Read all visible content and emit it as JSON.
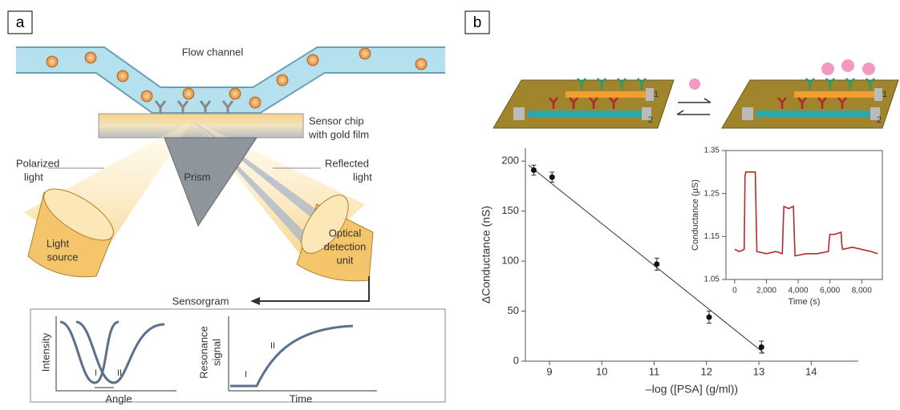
{
  "panel_a": {
    "label": "a",
    "flow_channel": "Flow channel",
    "sensor_chip": [
      "Sensor chip",
      "with gold film"
    ],
    "polarized_light": [
      "Polarized",
      "light"
    ],
    "reflected_light": [
      "Reflected",
      "light"
    ],
    "prism": "Prism",
    "light_source": [
      "Light",
      "source"
    ],
    "detection_unit": [
      "Optical",
      "detection",
      "unit"
    ],
    "sensorgram": "Sensorgram",
    "plot_1": {
      "y_label": "Intensity",
      "x_label": "Angle",
      "marks": [
        "I",
        "II"
      ]
    },
    "plot_2": {
      "y_label": [
        "Resonance",
        "signal"
      ],
      "x_label": "Time",
      "marks": [
        "I",
        "II"
      ]
    }
  },
  "panel_b": {
    "label": "b",
    "chip_labels": [
      [
        "1",
        "2"
      ],
      [
        "1",
        "2"
      ]
    ]
  },
  "chart_data": [
    {
      "type": "scatter",
      "x_label": "–log ([PSA] (g/ml))",
      "y_label": "ΔConductance (nS)",
      "x": [
        8.7,
        9.05,
        11.05,
        12.05,
        13.05
      ],
      "values": [
        191,
        184,
        97,
        44,
        14
      ],
      "errors": [
        5,
        5,
        6,
        6,
        6
      ],
      "trend_line": {
        "x": [
          8.6,
          13.1
        ],
        "values": [
          196,
          8
        ]
      },
      "color": "#111111",
      "xlim": [
        8.54,
        14.9
      ],
      "ylim": [
        0,
        213
      ],
      "xticks": [
        9,
        10,
        11,
        12,
        13,
        14
      ],
      "yticks": [
        0,
        50,
        100,
        150,
        200
      ]
    },
    {
      "type": "line",
      "x_label": "Time (s)",
      "y_label": "Conductance (µS)",
      "x": [
        0,
        300,
        600,
        650,
        700,
        1000,
        1300,
        1350,
        1400,
        2000,
        2600,
        3000,
        3050,
        3100,
        3400,
        3700,
        3750,
        3800,
        4500,
        5200,
        5900,
        5950,
        6000,
        6300,
        6700,
        6750,
        6800,
        7400,
        8000,
        8600,
        9000
      ],
      "values": [
        1.12,
        1.115,
        1.12,
        1.29,
        1.3,
        1.3,
        1.3,
        1.2,
        1.115,
        1.11,
        1.115,
        1.11,
        1.17,
        1.22,
        1.215,
        1.22,
        1.16,
        1.105,
        1.11,
        1.11,
        1.115,
        1.14,
        1.155,
        1.155,
        1.16,
        1.13,
        1.12,
        1.125,
        1.12,
        1.115,
        1.11
      ],
      "color": "#b52a2a",
      "xlim": [
        -550,
        9300
      ],
      "ylim": [
        1.05,
        1.35
      ],
      "xticks": [
        0,
        {
          "value": 2000,
          "label": "2,000"
        },
        {
          "value": 4000,
          "label": "4,000"
        },
        {
          "value": 6000,
          "label": "6,000"
        },
        {
          "value": 8000,
          "label": "8,000"
        }
      ],
      "yticks": [
        1.05,
        1.15,
        1.25,
        1.35
      ]
    }
  ]
}
